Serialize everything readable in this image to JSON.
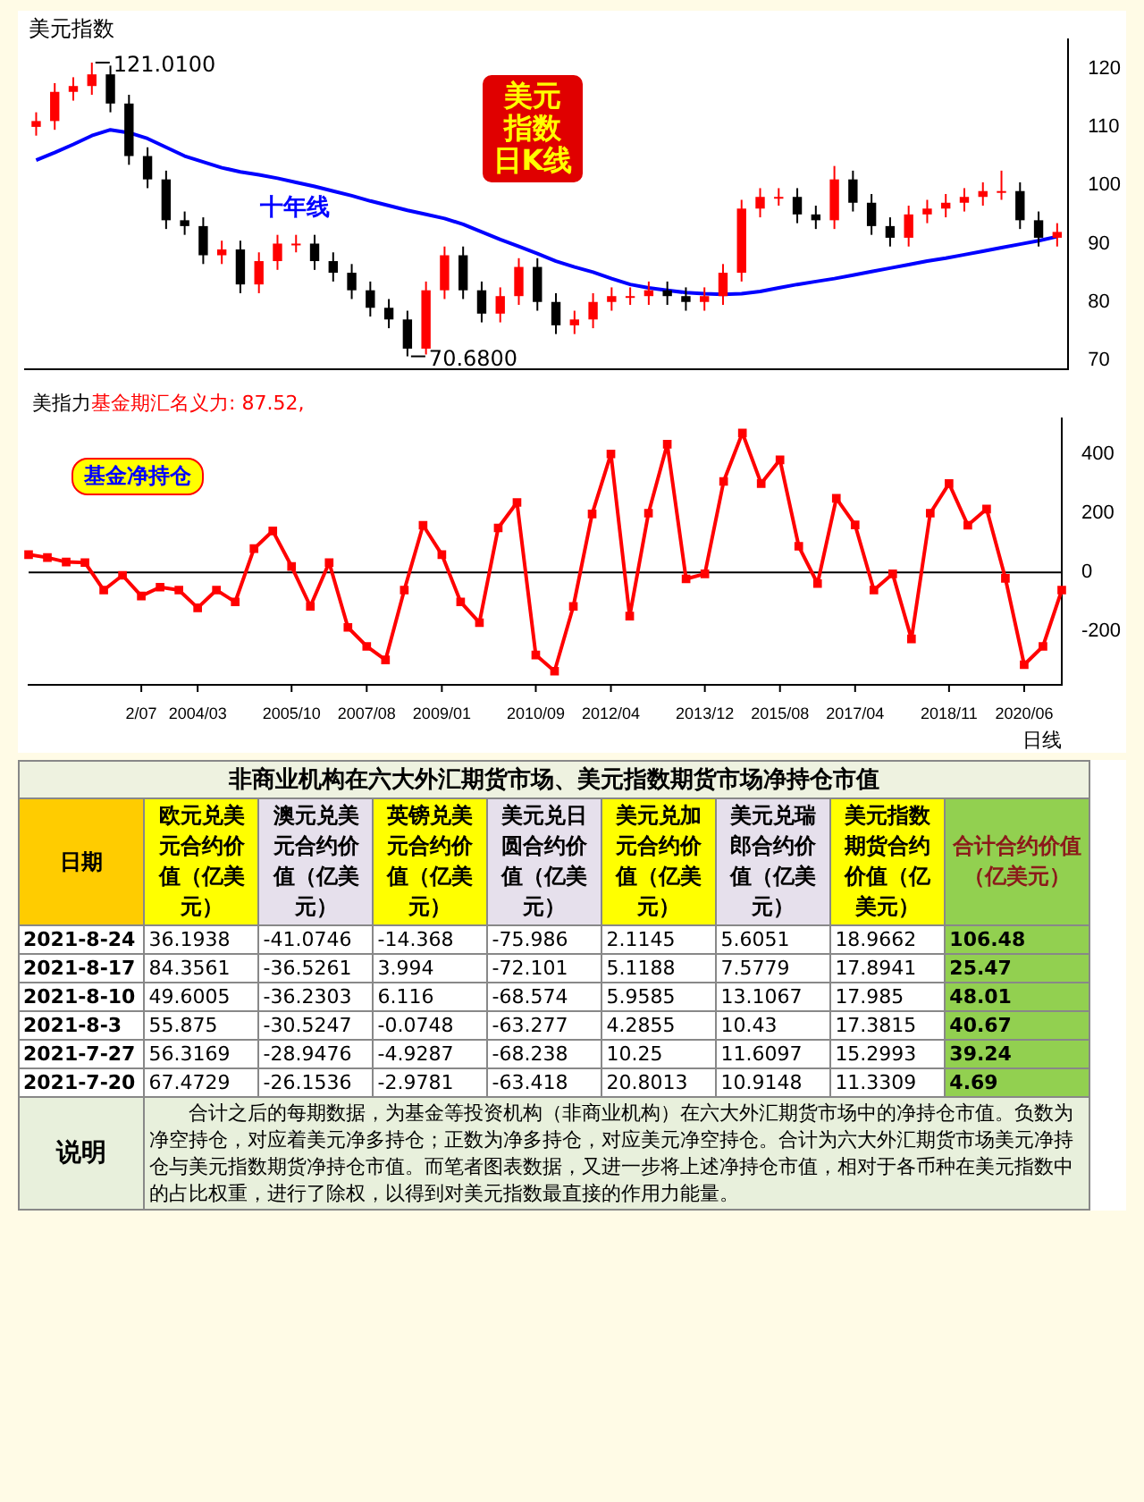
{
  "chart_data": [
    {
      "type": "candlestick",
      "title": "美元指数日K线",
      "colors": [
        "#ff0000",
        "#ff0000",
        "#ff0000",
        "#ff0000",
        "#000000",
        "#000000",
        "#000000",
        "#000000",
        "#000000",
        "#000000",
        "#ff0000",
        "#000000",
        "#ff0000",
        "#ff0000",
        "#ff0000",
        "#000000",
        "#000000",
        "#000000",
        "#000000",
        "#000000",
        "#000000",
        "#ff0000",
        "#ff0000",
        "#000000",
        "#000000",
        "#ff0000",
        "#ff0000",
        "#000000",
        "#000000",
        "#ff0000",
        "#ff0000",
        "#ff0000",
        "#ff0000",
        "#ff0000",
        "#000000",
        "#000000",
        "#ff0000",
        "#ff0000",
        "#ff0000",
        "#ff0000",
        "#ff0000",
        "#000000",
        "#000000",
        "#ff0000",
        "#000000",
        "#000000",
        "#000000",
        "#ff0000",
        "#ff0000",
        "#ff0000",
        "#ff0000",
        "#ff0000",
        "#ff0000",
        "#000000",
        "#000000",
        "#ff0000"
      ],
      "tick_labels": "y",
      "legend": false,
      "grid": false,
      "ohlc": [
        [
          110,
          112.5,
          108.5,
          111
        ],
        [
          111,
          117.5,
          109.5,
          116
        ],
        [
          116,
          118.5,
          114.5,
          117
        ],
        [
          117,
          121.01,
          115.5,
          119
        ],
        [
          119,
          120.5,
          112.5,
          114
        ],
        [
          114,
          115.5,
          103.5,
          105
        ],
        [
          105,
          106.5,
          99.5,
          101
        ],
        [
          101,
          102.5,
          92.5,
          94
        ],
        [
          94,
          95.5,
          91.5,
          93
        ],
        [
          93,
          94.5,
          86.5,
          88
        ],
        [
          88,
          90.5,
          86.5,
          89
        ],
        [
          89,
          90.5,
          81.5,
          83
        ],
        [
          83,
          88.5,
          81.5,
          87
        ],
        [
          87,
          91.5,
          85.5,
          90
        ],
        [
          90,
          91.5,
          88.5,
          90
        ],
        [
          90,
          91.5,
          85.5,
          87
        ],
        [
          87,
          88.5,
          83.5,
          85
        ],
        [
          85,
          86.5,
          80.5,
          82
        ],
        [
          82,
          83.5,
          77.5,
          79
        ],
        [
          79,
          80.5,
          75.5,
          77
        ],
        [
          77,
          78.5,
          70.68,
          72
        ],
        [
          72,
          83.5,
          71,
          82
        ],
        [
          82,
          89.5,
          80.5,
          88
        ],
        [
          88,
          89.5,
          80.5,
          82
        ],
        [
          82,
          83.5,
          76.5,
          78
        ],
        [
          78,
          82.5,
          76.5,
          81
        ],
        [
          81,
          87.5,
          79.5,
          86
        ],
        [
          86,
          87.5,
          78.5,
          80
        ],
        [
          80,
          81.5,
          74.5,
          76
        ],
        [
          76,
          78.5,
          74.5,
          77
        ],
        [
          77,
          81.5,
          75.5,
          80
        ],
        [
          80,
          82.5,
          78.5,
          81
        ],
        [
          81,
          82.5,
          79.5,
          81
        ],
        [
          81,
          83.5,
          79.5,
          82
        ],
        [
          82,
          83.5,
          79.5,
          81
        ],
        [
          81,
          82.5,
          78.5,
          80
        ],
        [
          80,
          82.5,
          78.5,
          81
        ],
        [
          81,
          86.5,
          79.5,
          85
        ],
        [
          85,
          97.5,
          83.5,
          96
        ],
        [
          96,
          99.5,
          94.5,
          98
        ],
        [
          98,
          99.5,
          96.5,
          98
        ],
        [
          98,
          99.5,
          93.5,
          95
        ],
        [
          95,
          96.5,
          92.5,
          94
        ],
        [
          94,
          103.3,
          92.5,
          101
        ],
        [
          101,
          102.5,
          95.5,
          97
        ],
        [
          97,
          98.5,
          91.5,
          93
        ],
        [
          93,
          94.5,
          89.5,
          91
        ],
        [
          91,
          96.5,
          89.5,
          95
        ],
        [
          95,
          97.5,
          93.5,
          96
        ],
        [
          96,
          98.5,
          94.5,
          97
        ],
        [
          97,
          99.5,
          95.5,
          98
        ],
        [
          98,
          100.5,
          96.5,
          99
        ],
        [
          99,
          102.5,
          97.5,
          99
        ],
        [
          99,
          100.5,
          92.5,
          94
        ],
        [
          94,
          95.5,
          89.5,
          91
        ],
        [
          91,
          93.5,
          89.5,
          92
        ]
      ],
      "series": [
        {
          "name": "十年线",
          "type": "line",
          "color": "#0000ff",
          "values": [
            104.3,
            105.6,
            107,
            108.5,
            109.5,
            109,
            108,
            106.5,
            105,
            104,
            103,
            102.3,
            101.8,
            101.2,
            100.5,
            99.8,
            99,
            98.2,
            97.3,
            96.5,
            95.7,
            95,
            94.3,
            93.3,
            92,
            90.7,
            89.5,
            88.3,
            87,
            86,
            85.1,
            84,
            83,
            82.4,
            82,
            81.6,
            81.4,
            81.3,
            81.4,
            81.8,
            82.4,
            83,
            83.5,
            84,
            84.6,
            85.2,
            85.8,
            86.4,
            87,
            87.5,
            88.1,
            88.7,
            89.3,
            89.9,
            90.5,
            91.2
          ]
        }
      ],
      "ylim": [
        68.5,
        125
      ],
      "yticks": [
        70,
        80,
        90,
        100,
        110,
        120
      ],
      "annotations": [
        "美元指数",
        "121.0100",
        "70.6800"
      ]
    },
    {
      "type": "line",
      "title": "美指力",
      "subtitle": "基金期汇名义力: 87.52,",
      "xlabel": "日线",
      "legend": false,
      "grid": false,
      "marker": "square",
      "categories": [
        null,
        null,
        null,
        null,
        null,
        null,
        "2/07",
        null,
        null,
        "2004/03",
        null,
        null,
        null,
        null,
        "2005/10",
        null,
        null,
        null,
        "2007/08",
        null,
        null,
        null,
        "2009/01",
        null,
        null,
        null,
        null,
        "2010/09",
        null,
        null,
        null,
        "2012/04",
        null,
        null,
        null,
        null,
        "2013/12",
        null,
        null,
        null,
        "2015/08",
        null,
        null,
        null,
        "2017/04",
        null,
        null,
        null,
        null,
        "2018/11",
        null,
        null,
        null,
        "2020/06",
        null,
        null
      ],
      "series": [
        {
          "name": "基金净持仓",
          "color": "#ff0000",
          "values": [
            60,
            50,
            35,
            33,
            -60,
            -10,
            -80,
            -50,
            -60,
            -120,
            -60,
            -100,
            80,
            140,
            20,
            -115,
            33,
            -186,
            -250,
            -296,
            -60,
            159,
            60,
            -100,
            -170,
            150,
            236,
            -279,
            -334,
            -115,
            197,
            400,
            -148,
            200,
            433,
            -22,
            -5,
            307,
            471,
            300,
            380,
            88,
            -38,
            250,
            160,
            -60,
            -5,
            -225,
            200,
            300,
            159,
            214,
            -20,
            -312,
            -250,
            -60
          ]
        }
      ],
      "ylim": [
        -380,
        520
      ],
      "yticks": [
        -200,
        0,
        200,
        400
      ],
      "ref_lines": [
        {
          "axis": "y",
          "value": 0,
          "color": "#000000"
        }
      ]
    },
    {
      "type": "other",
      "title": "非商业机构在六大外汇期货市场、美元指数期货市场净持仓市值",
      "categories": [
        "日期",
        "欧元兑美元合约价值（亿美元）",
        "澳元兑美元合约价值（亿美元）",
        "英镑兑美元合约价值（亿美元）",
        "美元兑日圆合约价值（亿美元）",
        "美元兑加元合约价值（亿美元）",
        "美元兑瑞郎合约价值（亿美元）",
        "美元指数期货合约价值（亿美元）",
        "合计合约价值（亿美元）"
      ],
      "y_categories": [
        "2021-8-24",
        "2021-8-17",
        "2021-8-10",
        "2021-8-3",
        "2021-7-27",
        "2021-7-20"
      ],
      "cell_labels": [
        [
          "36.1938",
          "-41.0746",
          "-14.368",
          "-75.986",
          "2.1145",
          "5.6051",
          "18.9662",
          "106.48"
        ],
        [
          "84.3561",
          "-36.5261",
          "3.994",
          "-72.101",
          "5.1188",
          "7.5779",
          "17.8941",
          "25.47"
        ],
        [
          "49.6005",
          "-36.2303",
          "6.116",
          "-68.574",
          "5.9585",
          "13.1067",
          "17.985",
          "48.01"
        ],
        [
          "55.875",
          "-30.5247",
          "-0.0748",
          "-63.277",
          "4.2855",
          "10.43",
          "17.3815",
          "40.67"
        ],
        [
          "56.3169",
          "-28.9476",
          "-4.9287",
          "-68.238",
          "10.25",
          "11.6097",
          "15.2993",
          "39.24"
        ],
        [
          "67.4729",
          "-26.1536",
          "-2.9781",
          "-63.418",
          "20.8013",
          "10.9148",
          "11.3309",
          "4.69"
        ]
      ],
      "annotations": [
        "说明",
        "合计之后的每期数据，为基金等投资机构（非商业机构）在六大外汇期货市场中的净持仓市值。负数为净空持仓，对应着美元净多持仓；正数为净多持仓，对应美元净空持仓。合计为六大外汇期货市场美元净持仓与美元指数期货净持仓市值。而笔者图表数据，又进一步将上述净持仓市值，相对于各币种在美元指数中的占比权重，进行了除权，以得到对美元指数最直接的作用力能量。"
      ]
    }
  ]
}
